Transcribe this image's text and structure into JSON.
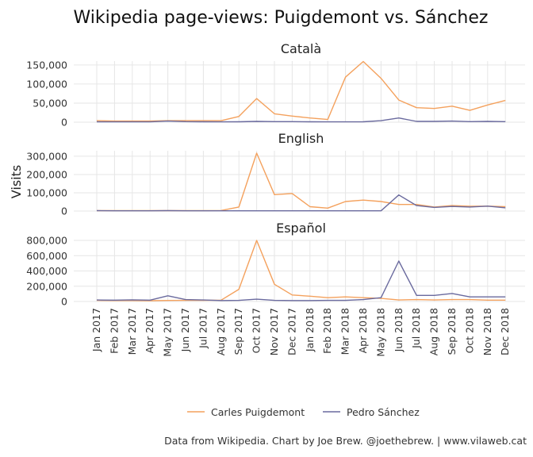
{
  "chart_data": {
    "type": "line",
    "title": "Wikipedia page-views: Puigdemont vs. Sánchez",
    "ylabel": "Visits",
    "caption": "Data from Wikipedia. Chart by Joe Brew. @joethebrew. | www.vilaweb.cat",
    "legend_position": "bottom",
    "grid": true,
    "colors": {
      "Carles Puigdemont": "#f4a15d",
      "Pedro Sánchez": "#6a6a9e"
    },
    "x": [
      "Jan 2017",
      "Feb 2017",
      "Mar 2017",
      "Apr 2017",
      "May 2017",
      "Jun 2017",
      "Jul 2017",
      "Aug 2017",
      "Sep 2017",
      "Oct 2017",
      "Nov 2017",
      "Dec 2017",
      "Jan 2018",
      "Feb 2018",
      "Mar 2018",
      "Apr 2018",
      "May 2018",
      "Jun 2018",
      "Jul 2018",
      "Aug 2018",
      "Sep 2018",
      "Oct 2018",
      "Nov 2018",
      "Dec 2018"
    ],
    "panels": [
      {
        "title": "Català",
        "ylim": [
          0,
          160000
        ],
        "yticks": [
          0,
          50000,
          100000,
          150000
        ],
        "ytick_labels": [
          "0",
          "50,000",
          "100,000",
          "150,000"
        ],
        "series": [
          {
            "name": "Carles Puigdemont",
            "values": [
              4000,
              3000,
              3000,
              3000,
              4000,
              4000,
              4000,
              4000,
              15000,
              62000,
              22000,
              16000,
              11000,
              7000,
              118000,
              159000,
              115000,
              58000,
              38000,
              36000,
              42000,
              31000,
              45000,
              57000
            ]
          },
          {
            "name": "Pedro Sánchez",
            "values": [
              1000,
              800,
              800,
              800,
              3000,
              1500,
              1000,
              800,
              1000,
              2000,
              1500,
              1500,
              1000,
              900,
              900,
              1000,
              4000,
              11000,
              2000,
              2000,
              3000,
              1500,
              2000,
              1500
            ]
          }
        ]
      },
      {
        "title": "English",
        "ylim": [
          0,
          330000
        ],
        "yticks": [
          0,
          100000,
          200000,
          300000
        ],
        "ytick_labels": [
          "0",
          "100,000",
          "200,000",
          "300,000"
        ],
        "series": [
          {
            "name": "Carles Puigdemont",
            "values": [
              2000,
              2000,
              2000,
              2000,
              2000,
              2000,
              2000,
              3000,
              22000,
              317000,
              90000,
              96000,
              24000,
              16000,
              52000,
              60000,
              52000,
              36000,
              36000,
              22000,
              30000,
              26000,
              27000,
              24000
            ]
          },
          {
            "name": "Pedro Sánchez",
            "values": [
              2000,
              1500,
              1500,
              1500,
              2000,
              1500,
              1500,
              1500,
              1500,
              1500,
              1500,
              1500,
              1500,
              1500,
              1500,
              1500,
              1500,
              88000,
              30000,
              20000,
              25000,
              22000,
              27000,
              18000
            ]
          }
        ]
      },
      {
        "title": "Español",
        "ylim": [
          0,
          800000
        ],
        "yticks": [
          0,
          200000,
          400000,
          600000,
          800000
        ],
        "ytick_labels": [
          "0",
          "200,000",
          "400,000",
          "600,000",
          "800,000"
        ],
        "series": [
          {
            "name": "Carles Puigdemont",
            "values": [
              15000,
              12000,
              12000,
              10000,
              14000,
              15000,
              15000,
              18000,
              160000,
              800000,
              225000,
              85000,
              70000,
              50000,
              60000,
              50000,
              40000,
              20000,
              25000,
              20000,
              25000,
              25000,
              18000,
              18000
            ]
          },
          {
            "name": "Pedro Sánchez",
            "values": [
              20000,
              18000,
              22000,
              18000,
              75000,
              25000,
              20000,
              12000,
              15000,
              30000,
              15000,
              12000,
              12000,
              15000,
              15000,
              25000,
              50000,
              530000,
              80000,
              80000,
              105000,
              60000,
              60000,
              60000
            ]
          }
        ]
      }
    ]
  }
}
